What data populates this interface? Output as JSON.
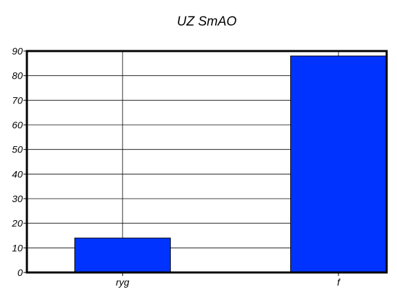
{
  "chart_data": {
    "type": "bar",
    "title": "UZ SmAO",
    "xlabel": "",
    "ylabel": "",
    "categories": [
      "ryg",
      "f"
    ],
    "values": [
      14,
      88
    ],
    "ylim": [
      0,
      90
    ],
    "yticks": [
      0,
      10,
      20,
      30,
      40,
      50,
      60,
      70,
      80,
      90
    ],
    "grid": true,
    "bar_color": "#0033ff"
  }
}
